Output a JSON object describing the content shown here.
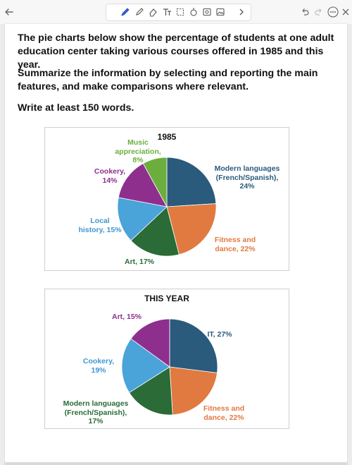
{
  "toolbar": {
    "icons": [
      "back-arrow-icon",
      "pen-icon",
      "highlighter-icon",
      "eraser-icon",
      "text-icon",
      "lasso-icon",
      "shape-icon",
      "image-icon",
      "camera-icon",
      "more-tools-icon",
      "undo-icon",
      "redo-icon",
      "more-icon",
      "close-icon"
    ]
  },
  "prompt": {
    "para1": "The pie charts below show the percentage of students at one adult education center taking various courses offered in 1985 and this year.",
    "para2": "Summarize the information by selecting and reporting the main features, and make comparisons where relevant.",
    "para3": "Write at least 150 words."
  },
  "chart_data": [
    {
      "type": "pie",
      "title": "1985",
      "slices": [
        {
          "label_lines": [
            "Modern languages",
            "(French/Spanish),",
            "24%"
          ],
          "value": 24,
          "color": "#2a5a7c"
        },
        {
          "label_lines": [
            "Fitness and",
            "dance, 22%"
          ],
          "value": 22,
          "color": "#e07a40"
        },
        {
          "label_lines": [
            "Art, 17%"
          ],
          "value": 17,
          "color": "#2a6b38"
        },
        {
          "label_lines": [
            "Local",
            "history, 15%"
          ],
          "value": 15,
          "color": "#4aa3d9"
        },
        {
          "label_lines": [
            "Cookery,",
            "14%"
          ],
          "value": 14,
          "color": "#8e2f8e"
        },
        {
          "label_lines": [
            "Music",
            "appreciation,",
            "8%"
          ],
          "value": 8,
          "color": "#6cae3e"
        }
      ]
    },
    {
      "type": "pie",
      "title": "THIS YEAR",
      "slices": [
        {
          "label_lines": [
            "IT, 27%"
          ],
          "value": 27,
          "color": "#2a5a7c"
        },
        {
          "label_lines": [
            "Fitness and",
            "dance, 22%"
          ],
          "value": 22,
          "color": "#e07a40"
        },
        {
          "label_lines": [
            "Modern languages",
            "(French/Spanish),",
            "17%"
          ],
          "value": 17,
          "color": "#2a6b38"
        },
        {
          "label_lines": [
            "Cookery,",
            "19%"
          ],
          "value": 19,
          "color": "#4aa3d9"
        },
        {
          "label_lines": [
            "Art, 15%"
          ],
          "value": 15,
          "color": "#8e2f8e"
        }
      ]
    }
  ]
}
